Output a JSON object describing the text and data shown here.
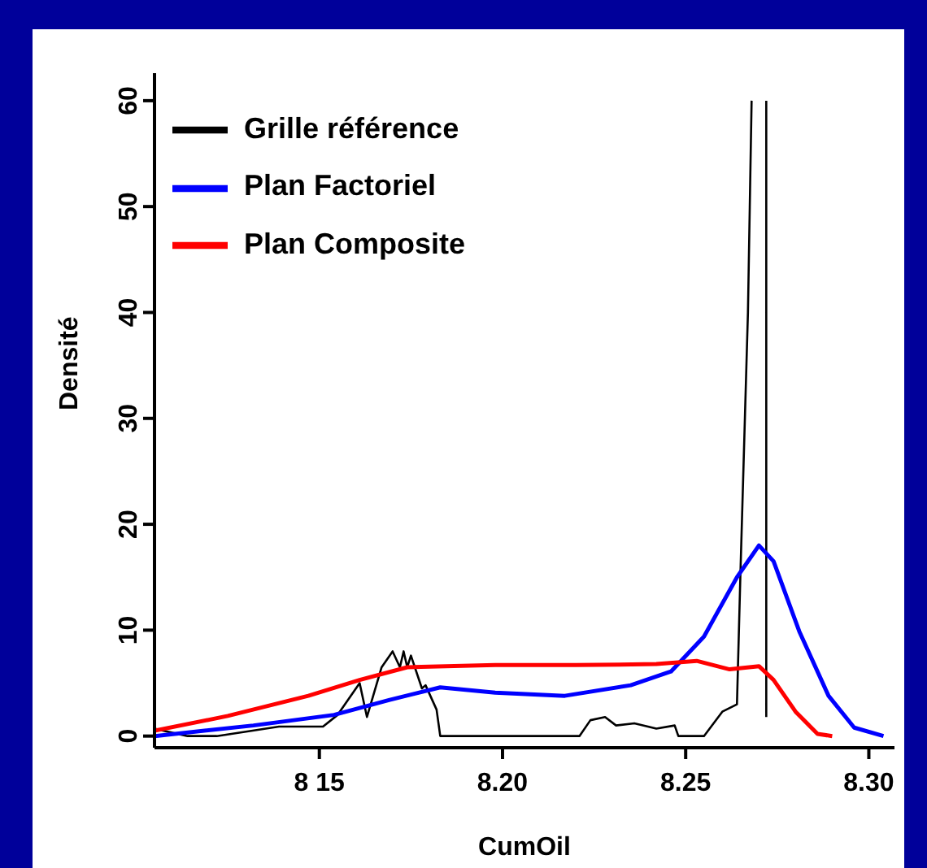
{
  "chart_data": {
    "type": "line",
    "xlabel": "CumOil",
    "ylabel": "Densité",
    "xlim": [
      8.105,
      8.307
    ],
    "ylim": [
      -1.1,
      62.6
    ],
    "xticks": [
      {
        "value": 8.15,
        "label": "8 15"
      },
      {
        "value": 8.2,
        "label": "8.20"
      },
      8.25,
      {
        "value": 8.3,
        "label": "8.30"
      }
    ],
    "yticks": [
      0,
      10,
      20,
      30,
      40,
      50,
      60
    ],
    "grid": false,
    "legend": "top left",
    "marker": "none",
    "line_style": "solid",
    "series": [
      {
        "name": "Grille référence",
        "color": "#000000",
        "x": [
          8.105,
          8.114,
          8.122,
          8.139,
          8.151,
          8.155,
          8.161,
          8.163,
          8.167,
          8.17,
          8.172,
          8.173,
          8.174,
          8.175,
          8.178,
          8.179,
          8.182,
          8.183,
          8.221,
          8.224,
          8.228,
          8.231,
          8.236,
          8.242,
          8.247,
          8.248,
          8.255,
          8.26,
          8.264,
          8.265,
          8.267,
          8.268,
          8.27,
          8.272,
          8.272
        ],
        "values": [
          0.7,
          0,
          0,
          0.9,
          0.9,
          2,
          5,
          1.8,
          6.5,
          8,
          6.5,
          8,
          6.5,
          7.6,
          4.5,
          4.8,
          2.5,
          0,
          0,
          1.5,
          1.8,
          1,
          1.2,
          0.7,
          1,
          0,
          0,
          2.3,
          3,
          16,
          40,
          60,
          null,
          60,
          1.8
        ]
      },
      {
        "name": "Plan Factoriel",
        "color": "#0000ff",
        "x": [
          8.105,
          8.132,
          8.154,
          8.169,
          8.183,
          8.198,
          8.217,
          8.235,
          8.246,
          8.255,
          8.264,
          8.27,
          8.274,
          8.281,
          8.289,
          8.296,
          8.304
        ],
        "values": [
          0,
          1,
          2,
          3.4,
          4.6,
          4.1,
          3.8,
          4.8,
          6.1,
          9.4,
          15,
          18,
          16.5,
          9.9,
          3.8,
          0.8,
          0
        ]
      },
      {
        "name": "Plan Composite",
        "color": "#ff0000",
        "x": [
          8.105,
          8.125,
          8.147,
          8.161,
          8.174,
          8.198,
          8.22,
          8.242,
          8.253,
          8.262,
          8.27,
          8.274,
          8.28,
          8.286,
          8.29
        ],
        "values": [
          0.5,
          1.9,
          3.8,
          5.3,
          6.5,
          6.7,
          6.7,
          6.8,
          7.1,
          6.3,
          6.6,
          5.3,
          2.3,
          0.2,
          0
        ]
      }
    ]
  }
}
